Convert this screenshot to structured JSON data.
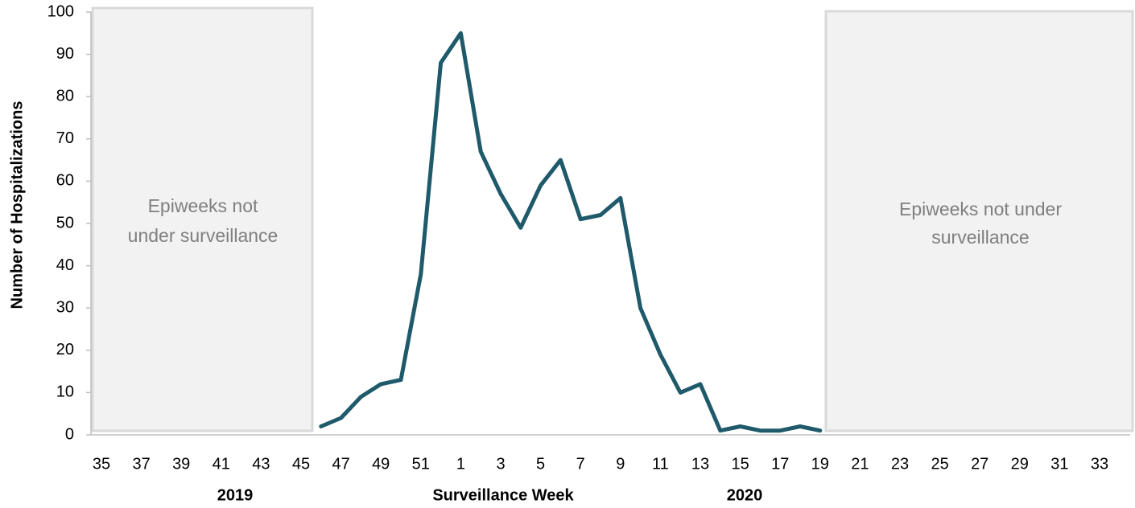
{
  "chart_data": {
    "type": "line",
    "x_label": "Surveillance Week",
    "y_label": "Number of Hospitalizations",
    "year_labels": [
      "2019",
      "2020"
    ],
    "annotations": [
      {
        "lines": [
          "Epiweeks not",
          "under surveillance"
        ]
      },
      {
        "lines": [
          "Epiweeks not under",
          "surveillance"
        ]
      }
    ],
    "categories": [
      "35",
      null,
      "37",
      null,
      "39",
      null,
      "41",
      null,
      "43",
      null,
      "45",
      null,
      "47",
      null,
      "49",
      null,
      "51",
      null,
      "1",
      null,
      "3",
      null,
      "5",
      null,
      "7",
      null,
      "9",
      null,
      "11",
      null,
      "13",
      null,
      "15",
      null,
      "17",
      null,
      "19",
      null,
      "21",
      null,
      "23",
      null,
      "25",
      null,
      "27",
      null,
      "29",
      null,
      "31",
      null,
      "33",
      null
    ],
    "series": [
      {
        "name": "Hospitalizations",
        "color": "#1f5a6b",
        "values": [
          null,
          null,
          null,
          null,
          null,
          null,
          null,
          null,
          null,
          null,
          null,
          2,
          4,
          9,
          12,
          13,
          38,
          88,
          95,
          67,
          57,
          49,
          59,
          65,
          51,
          52,
          56,
          30,
          19,
          10,
          12,
          1,
          2,
          1,
          1,
          2,
          1,
          null,
          null,
          null,
          null,
          null,
          null,
          null,
          null,
          null,
          null,
          null,
          null,
          null,
          null,
          null
        ]
      }
    ],
    "ylim": [
      0,
      100
    ],
    "yticks": [
      0,
      10,
      20,
      30,
      40,
      50,
      60,
      70,
      80,
      90,
      100
    ],
    "grid": false
  }
}
